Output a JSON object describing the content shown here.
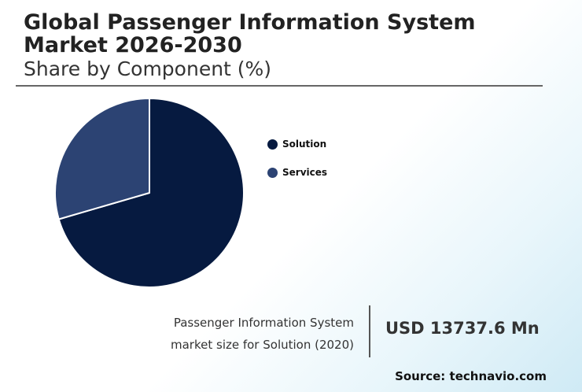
{
  "header": {
    "title": "Global Passenger Information System Market 2026-2030",
    "subtitle": "Share by Component (%)"
  },
  "chart_data": {
    "type": "pie",
    "categories": [
      "Solution",
      "Services"
    ],
    "values": [
      70.5,
      29.5
    ],
    "colors": [
      "#061a40",
      "#2c4373"
    ],
    "legend": "right",
    "start_angle": "12 o'clock",
    "direction": "clockwise"
  },
  "footer": {
    "caption_line1": "Passenger Information System",
    "caption_line2": "market size for Solution (2020)",
    "value": "USD 13737.6 Mn",
    "source": "Source: technavio.com"
  }
}
